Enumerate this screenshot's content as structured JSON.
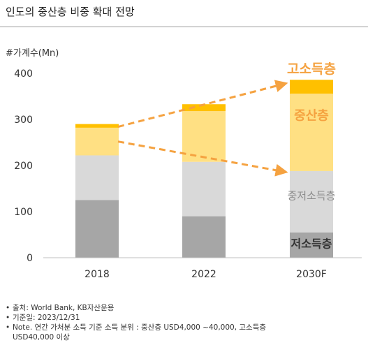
{
  "title": "인도의 중산층 비중 확대 전망",
  "chart_data": {
    "type": "bar",
    "stacked": true,
    "ylabel": "#가계수(Mn)",
    "ylim": [
      0,
      400
    ],
    "yticks": [
      0,
      100,
      200,
      300,
      400
    ],
    "grid": false,
    "categories": [
      "2018",
      "2022",
      "2030F"
    ],
    "series": [
      {
        "name": "저소득층",
        "color": "#a6a6a6",
        "values": [
          125,
          90,
          55
        ]
      },
      {
        "name": "중저소득층",
        "color": "#d9d9d9",
        "values": [
          97,
          118,
          133
        ]
      },
      {
        "name": "중산층",
        "color": "#ffe083",
        "values": [
          60,
          110,
          168
        ]
      },
      {
        "name": "고소득층",
        "color": "#ffc000",
        "values": [
          8,
          15,
          30
        ]
      }
    ],
    "annotations": {
      "arrow_color": "#f5a240",
      "arrows": [
        "high-income trend",
        "middle-income trend"
      ]
    },
    "label_colors": {
      "고소득층": "#f5a240",
      "중산층": "#f5a240",
      "중저소득층": "#8c8c8c",
      "저소득층": "#333333"
    }
  },
  "notes": [
    "출처: World Bank, KB자산운용",
    "기준일: 2023/12/31",
    "Note. 연간 가처분 소득 기준 소득 분위 : 중산층 USD4,000 ~40,000, 고소득층\nUSD40,000 이상"
  ]
}
